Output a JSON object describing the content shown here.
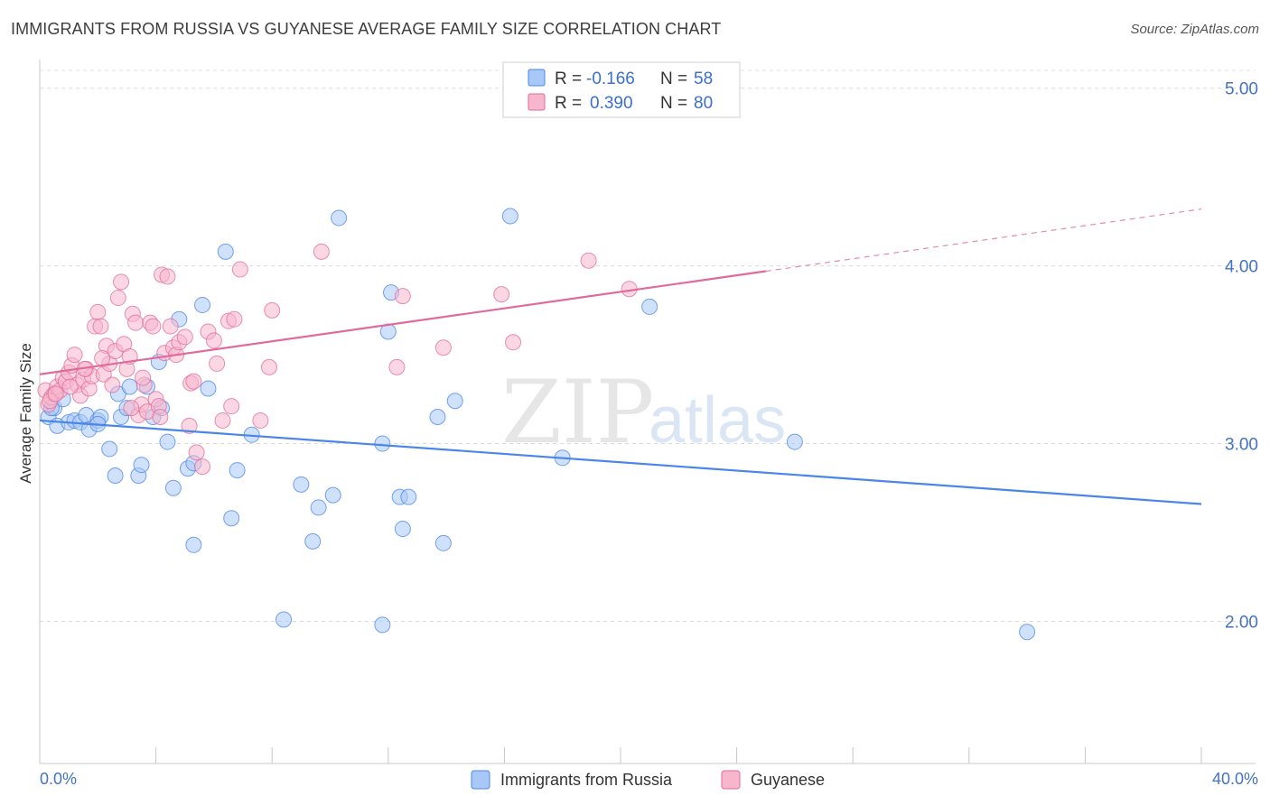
{
  "title": "IMMIGRANTS FROM RUSSIA VS GUYANESE AVERAGE FAMILY SIZE CORRELATION CHART",
  "source": "Source: ZipAtlas.com",
  "watermark": {
    "zip": "ZIP",
    "atlas": "atlas"
  },
  "chart_data": {
    "type": "scatter",
    "ylabel": "Average Family Size",
    "xlim": [
      0,
      40
    ],
    "ylim": [
      1.2,
      5.1
    ],
    "x_tick_labels": [
      "0.0%",
      "40.0%"
    ],
    "y_ticks": [
      2.0,
      3.0,
      4.0,
      5.0
    ],
    "y_tick_labels": [
      "2.00",
      "3.00",
      "4.00",
      "5.00"
    ],
    "grid": true,
    "legend_position": "top-center",
    "series": [
      {
        "name": "Immigrants from Russia",
        "color": "#4a86e8",
        "fill": "#a8c8f8",
        "r_label": "R =",
        "r_value": "-0.166",
        "n_label": "N =",
        "n_value": "58",
        "trend": {
          "x0": 0,
          "y0": 3.13,
          "x1": 40,
          "y1": 2.66,
          "dashed_from": null
        },
        "points": [
          [
            0.3,
            3.15
          ],
          [
            0.5,
            3.2
          ],
          [
            0.6,
            3.1
          ],
          [
            0.8,
            3.25
          ],
          [
            1.0,
            3.12
          ],
          [
            1.2,
            3.13
          ],
          [
            1.4,
            3.12
          ],
          [
            1.6,
            3.16
          ],
          [
            1.7,
            3.08
          ],
          [
            2.0,
            3.13
          ],
          [
            2.1,
            3.15
          ],
          [
            2.0,
            3.11
          ],
          [
            2.4,
            2.97
          ],
          [
            2.6,
            2.82
          ],
          [
            2.7,
            3.28
          ],
          [
            2.8,
            3.15
          ],
          [
            3.0,
            3.2
          ],
          [
            3.1,
            3.32
          ],
          [
            3.4,
            2.82
          ],
          [
            3.5,
            2.88
          ],
          [
            3.7,
            3.32
          ],
          [
            3.9,
            3.15
          ],
          [
            4.1,
            3.46
          ],
          [
            4.2,
            3.2
          ],
          [
            4.4,
            3.01
          ],
          [
            4.6,
            2.75
          ],
          [
            4.8,
            3.7
          ],
          [
            5.1,
            2.86
          ],
          [
            5.3,
            2.89
          ],
          [
            5.3,
            2.43
          ],
          [
            5.6,
            3.78
          ],
          [
            5.8,
            3.31
          ],
          [
            6.4,
            4.08
          ],
          [
            6.6,
            2.58
          ],
          [
            6.8,
            2.85
          ],
          [
            7.3,
            3.05
          ],
          [
            8.4,
            2.01
          ],
          [
            9.0,
            2.77
          ],
          [
            9.4,
            2.45
          ],
          [
            9.6,
            2.64
          ],
          [
            10.1,
            2.71
          ],
          [
            10.3,
            4.27
          ],
          [
            11.8,
            1.98
          ],
          [
            11.8,
            3.0
          ],
          [
            12.0,
            3.63
          ],
          [
            12.1,
            3.85
          ],
          [
            12.4,
            2.7
          ],
          [
            12.5,
            2.52
          ],
          [
            12.7,
            2.7
          ],
          [
            13.7,
            3.15
          ],
          [
            13.9,
            2.44
          ],
          [
            14.3,
            3.24
          ],
          [
            16.2,
            4.28
          ],
          [
            18.0,
            2.92
          ],
          [
            21.0,
            3.77
          ],
          [
            26.0,
            3.01
          ],
          [
            34.0,
            1.94
          ],
          [
            0.4,
            3.2
          ]
        ]
      },
      {
        "name": "Guyanese",
        "color": "#e06b9a",
        "fill": "#f7b6cc",
        "r_label": "R =",
        "r_value": "0.390",
        "n_label": "N =",
        "n_value": "80",
        "trend": {
          "x0": 0,
          "y0": 3.39,
          "x1": 25,
          "y1": 3.97,
          "x2": 40,
          "y2": 4.32,
          "dashed_from": 25
        },
        "points": [
          [
            0.2,
            3.3
          ],
          [
            0.3,
            3.22
          ],
          [
            0.4,
            3.26
          ],
          [
            0.5,
            3.28
          ],
          [
            0.6,
            3.32
          ],
          [
            0.7,
            3.3
          ],
          [
            0.8,
            3.37
          ],
          [
            0.9,
            3.35
          ],
          [
            1.0,
            3.4
          ],
          [
            1.1,
            3.44
          ],
          [
            1.2,
            3.5
          ],
          [
            1.3,
            3.33
          ],
          [
            1.4,
            3.27
          ],
          [
            1.5,
            3.36
          ],
          [
            1.6,
            3.42
          ],
          [
            1.7,
            3.31
          ],
          [
            1.8,
            3.38
          ],
          [
            1.9,
            3.66
          ],
          [
            2.0,
            3.74
          ],
          [
            2.1,
            3.66
          ],
          [
            2.2,
            3.39
          ],
          [
            2.3,
            3.55
          ],
          [
            2.4,
            3.45
          ],
          [
            2.5,
            3.33
          ],
          [
            2.6,
            3.52
          ],
          [
            2.7,
            3.82
          ],
          [
            2.8,
            3.91
          ],
          [
            2.9,
            3.56
          ],
          [
            3.0,
            3.42
          ],
          [
            3.1,
            3.49
          ],
          [
            3.2,
            3.73
          ],
          [
            3.3,
            3.68
          ],
          [
            3.4,
            3.16
          ],
          [
            3.5,
            3.22
          ],
          [
            3.6,
            3.33
          ],
          [
            3.7,
            3.18
          ],
          [
            3.8,
            3.68
          ],
          [
            3.9,
            3.66
          ],
          [
            4.0,
            3.25
          ],
          [
            4.1,
            3.21
          ],
          [
            4.2,
            3.95
          ],
          [
            4.3,
            3.51
          ],
          [
            4.4,
            3.94
          ],
          [
            4.5,
            3.66
          ],
          [
            4.6,
            3.54
          ],
          [
            4.7,
            3.5
          ],
          [
            4.8,
            3.57
          ],
          [
            5.0,
            3.6
          ],
          [
            5.2,
            3.34
          ],
          [
            5.3,
            3.35
          ],
          [
            5.4,
            2.95
          ],
          [
            5.6,
            2.87
          ],
          [
            5.8,
            3.63
          ],
          [
            6.0,
            3.58
          ],
          [
            6.1,
            3.45
          ],
          [
            6.3,
            3.13
          ],
          [
            6.5,
            3.69
          ],
          [
            6.7,
            3.7
          ],
          [
            6.6,
            3.21
          ],
          [
            6.9,
            3.98
          ],
          [
            7.6,
            3.13
          ],
          [
            7.9,
            3.43
          ],
          [
            8.0,
            3.75
          ],
          [
            9.7,
            4.08
          ],
          [
            12.3,
            3.43
          ],
          [
            12.5,
            3.83
          ],
          [
            13.9,
            3.54
          ],
          [
            15.9,
            3.84
          ],
          [
            16.3,
            3.57
          ],
          [
            18.9,
            4.03
          ],
          [
            20.3,
            3.87
          ],
          [
            0.35,
            3.24
          ],
          [
            0.55,
            3.28
          ],
          [
            1.05,
            3.32
          ],
          [
            1.55,
            3.42
          ],
          [
            2.15,
            3.48
          ],
          [
            3.15,
            3.2
          ],
          [
            4.15,
            3.15
          ],
          [
            5.15,
            3.1
          ],
          [
            3.55,
            3.37
          ]
        ]
      }
    ]
  }
}
